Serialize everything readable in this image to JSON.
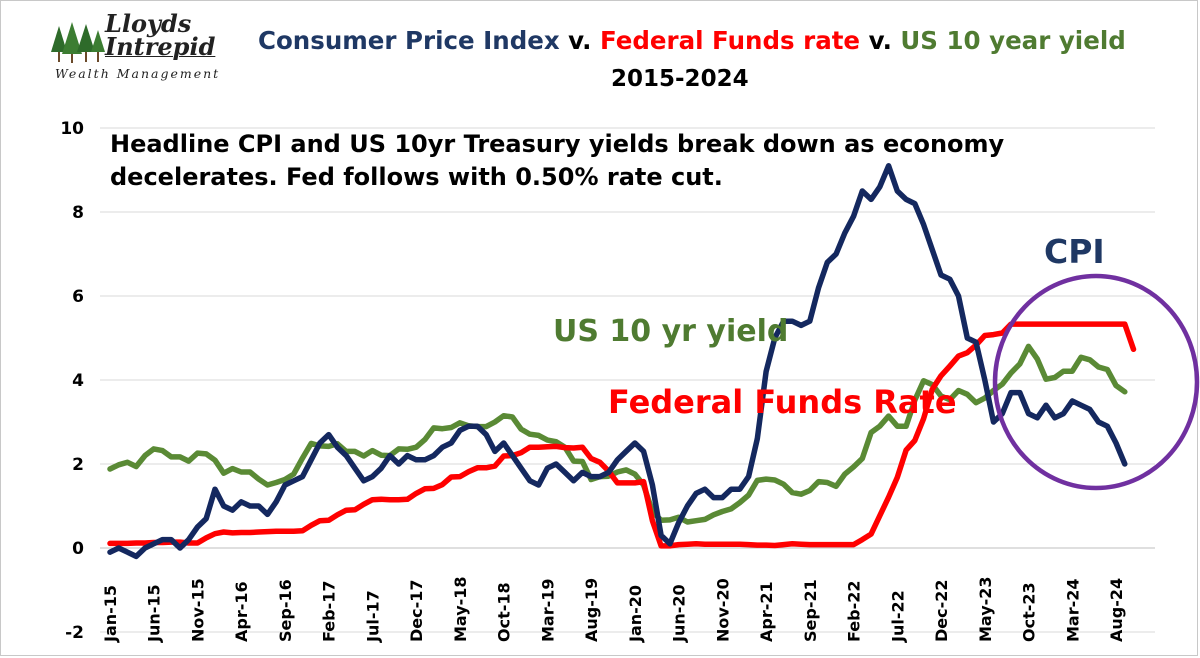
{
  "logo": {
    "name_line1": "Lloyds",
    "name_line2": "Intrepid",
    "tagline": "Wealth Management"
  },
  "title": {
    "part1": "Consumer Price Index",
    "sep1": " v. ",
    "part2": "Federal Funds rate",
    "sep2": " v. ",
    "part3": "US 10 year yield"
  },
  "subtitle": "2015-2024",
  "annotations": {
    "headline": "Headline CPI and US 10yr Treasury yields break down as economy decelerates. Fed follows with 0.50% rate cut.",
    "yield_label": "US 10 yr yield",
    "ffr_label": "Federal Funds Rate",
    "cpi_label": "CPI"
  },
  "colors": {
    "cpi": "#14285f",
    "ffr": "#ff0000",
    "yield": "#5a8a35",
    "circle": "#7030a0",
    "title_cpi": "#1f3864",
    "title_ffr": "#ff0000",
    "title_yield": "#4f7b31"
  },
  "chart_data": {
    "type": "line",
    "title": "Consumer Price Index v. Federal Funds rate v. US 10 year yield 2015-2024",
    "xlabel": "",
    "ylabel": "",
    "ylim": [
      -2,
      10
    ],
    "yticks": [
      -2,
      0,
      2,
      4,
      6,
      8,
      10
    ],
    "x_start": "Jan-15",
    "x_end": "Sep-24",
    "x_tick_labels": [
      "Jan-15",
      "Jun-15",
      "Nov-15",
      "Apr-16",
      "Sep-16",
      "Feb-17",
      "Jul-17",
      "Dec-17",
      "May-18",
      "Oct-18",
      "Mar-19",
      "Aug-19",
      "Jan-20",
      "Jun-20",
      "Nov-20",
      "Apr-21",
      "Sep-21",
      "Feb-22",
      "Jul-22",
      "Dec-22",
      "May-23",
      "Oct-23",
      "Mar-24",
      "Aug-24"
    ],
    "grid": "horizontal",
    "highlight": "circle around the 2023-2024 values",
    "series": [
      {
        "name": "CPI",
        "values": [
          -0.1,
          0.0,
          -0.1,
          -0.2,
          0.0,
          0.1,
          0.2,
          0.2,
          0.0,
          0.2,
          0.5,
          0.7,
          1.4,
          1.0,
          0.9,
          1.1,
          1.0,
          1.0,
          0.8,
          1.1,
          1.5,
          1.6,
          1.7,
          2.1,
          2.5,
          2.7,
          2.4,
          2.2,
          1.9,
          1.6,
          1.7,
          1.9,
          2.2,
          2.0,
          2.2,
          2.1,
          2.1,
          2.2,
          2.4,
          2.5,
          2.8,
          2.9,
          2.9,
          2.7,
          2.3,
          2.5,
          2.2,
          1.9,
          1.6,
          1.5,
          1.9,
          2.0,
          1.8,
          1.6,
          1.8,
          1.7,
          1.7,
          1.8,
          2.1,
          2.3,
          2.5,
          2.3,
          1.5,
          0.3,
          0.1,
          0.6,
          1.0,
          1.3,
          1.4,
          1.2,
          1.2,
          1.4,
          1.4,
          1.7,
          2.6,
          4.2,
          5.0,
          5.4,
          5.4,
          5.3,
          5.4,
          6.2,
          6.8,
          7.0,
          7.5,
          7.9,
          8.5,
          8.3,
          8.6,
          9.1,
          8.5,
          8.3,
          8.2,
          7.7,
          7.1,
          6.5,
          6.4,
          6.0,
          5.0,
          4.9,
          4.0,
          3.0,
          3.2,
          3.7,
          3.7,
          3.2,
          3.1,
          3.4,
          3.1,
          3.2,
          3.5,
          3.4,
          3.3,
          3.0,
          2.9,
          2.5,
          2.0
        ]
      },
      {
        "name": "Federal Funds Rate",
        "values": [
          0.11,
          0.11,
          0.11,
          0.12,
          0.12,
          0.13,
          0.13,
          0.14,
          0.14,
          0.12,
          0.12,
          0.24,
          0.34,
          0.38,
          0.36,
          0.37,
          0.37,
          0.38,
          0.39,
          0.4,
          0.4,
          0.4,
          0.41,
          0.54,
          0.65,
          0.66,
          0.79,
          0.9,
          0.91,
          1.04,
          1.15,
          1.16,
          1.15,
          1.15,
          1.16,
          1.3,
          1.41,
          1.42,
          1.51,
          1.69,
          1.7,
          1.82,
          1.91,
          1.91,
          1.95,
          2.19,
          2.2,
          2.27,
          2.4,
          2.4,
          2.41,
          2.42,
          2.39,
          2.38,
          2.4,
          2.13,
          2.04,
          1.83,
          1.55,
          1.55,
          1.55,
          1.58,
          0.65,
          0.05,
          0.05,
          0.08,
          0.09,
          0.1,
          0.09,
          0.09,
          0.09,
          0.09,
          0.09,
          0.08,
          0.07,
          0.07,
          0.06,
          0.08,
          0.1,
          0.09,
          0.08,
          0.08,
          0.08,
          0.08,
          0.08,
          0.08,
          0.2,
          0.33,
          0.77,
          1.21,
          1.68,
          2.33,
          2.56,
          3.08,
          3.78,
          4.1,
          4.33,
          4.57,
          4.65,
          4.83,
          5.06,
          5.08,
          5.12,
          5.33,
          5.33,
          5.33,
          5.33,
          5.33,
          5.33,
          5.33,
          5.33,
          5.33,
          5.33,
          5.33,
          5.33,
          5.33,
          5.33,
          4.73
        ]
      },
      {
        "name": "US 10 yr yield",
        "values": [
          1.88,
          1.98,
          2.04,
          1.94,
          2.2,
          2.36,
          2.32,
          2.17,
          2.17,
          2.07,
          2.26,
          2.24,
          2.09,
          1.78,
          1.89,
          1.81,
          1.81,
          1.64,
          1.5,
          1.56,
          1.63,
          1.76,
          2.14,
          2.49,
          2.43,
          2.42,
          2.48,
          2.3,
          2.3,
          2.19,
          2.32,
          2.21,
          2.2,
          2.36,
          2.35,
          2.4,
          2.58,
          2.86,
          2.84,
          2.87,
          2.98,
          2.91,
          2.89,
          2.89,
          3.0,
          3.15,
          3.12,
          2.83,
          2.71,
          2.68,
          2.57,
          2.53,
          2.4,
          2.07,
          2.06,
          1.63,
          1.7,
          1.71,
          1.81,
          1.86,
          1.76,
          1.5,
          0.87,
          0.66,
          0.67,
          0.73,
          0.62,
          0.65,
          0.68,
          0.79,
          0.87,
          0.93,
          1.08,
          1.26,
          1.61,
          1.64,
          1.62,
          1.52,
          1.32,
          1.28,
          1.37,
          1.58,
          1.56,
          1.47,
          1.76,
          1.93,
          2.13,
          2.75,
          2.9,
          3.14,
          2.9,
          2.9,
          3.52,
          3.98,
          3.89,
          3.62,
          3.53,
          3.75,
          3.66,
          3.46,
          3.57,
          3.75,
          3.9,
          4.17,
          4.38,
          4.8,
          4.5,
          4.02,
          4.06,
          4.21,
          4.21,
          4.54,
          4.48,
          4.31,
          4.25,
          3.87,
          3.72
        ]
      }
    ]
  }
}
